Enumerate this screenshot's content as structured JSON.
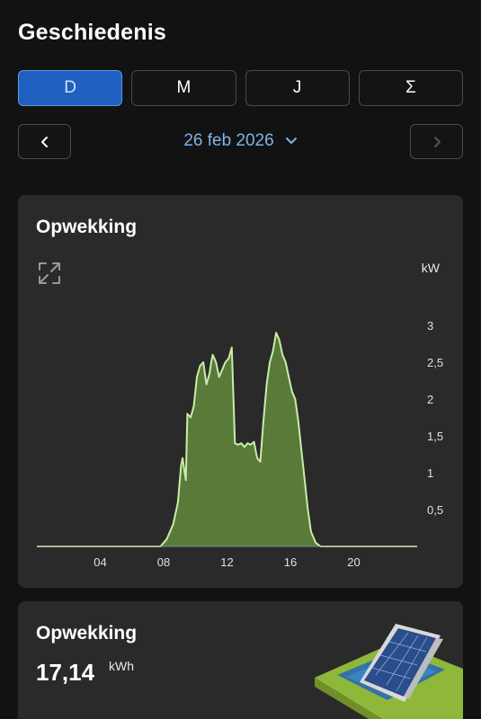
{
  "header": {
    "title": "Geschiedenis"
  },
  "tabs": [
    {
      "label": "D",
      "active": true
    },
    {
      "label": "M",
      "active": false
    },
    {
      "label": "J",
      "active": false
    },
    {
      "label": "Σ",
      "active": false
    }
  ],
  "date_nav": {
    "date": "26 feb 2026",
    "prev_icon": "chevron-left-icon",
    "next_icon": "chevron-right-icon",
    "dropdown_icon": "chevron-down-icon"
  },
  "production_chart": {
    "title": "Opwekking",
    "unit": "kW",
    "expand_icon": "expand-icon"
  },
  "chart_data": {
    "type": "area",
    "title": "Opwekking",
    "xlabel": "",
    "ylabel": "kW",
    "x_ticks": [
      "04",
      "08",
      "12",
      "16",
      "20"
    ],
    "y_ticks": [
      "0,5",
      "1",
      "1,5",
      "2",
      "2,5",
      "3"
    ],
    "xlim": [
      0,
      24
    ],
    "ylim": [
      0,
      3
    ],
    "color": "#5a7a3a",
    "line_color": "#c9ecab",
    "series": [
      {
        "x": [
          0,
          7.8,
          8.2,
          8.6,
          8.9,
          9.1,
          9.2,
          9.4,
          9.5,
          9.7,
          9.9,
          10.1,
          10.3,
          10.5,
          10.7,
          10.9,
          11.0,
          11.1,
          11.3,
          11.5,
          11.7,
          11.9,
          12.1,
          12.3,
          12.5,
          12.7,
          12.9,
          13.1,
          13.3,
          13.5,
          13.7,
          13.9,
          14.1,
          14.3,
          14.5,
          14.7,
          14.9,
          15.1,
          15.3,
          15.5,
          15.7,
          15.9,
          16.1,
          16.3,
          16.5,
          16.7,
          16.9,
          17.1,
          17.3,
          17.6,
          17.9,
          18.3,
          24
        ],
        "y": [
          0,
          0,
          0.1,
          0.3,
          0.6,
          1.1,
          1.2,
          0.9,
          1.8,
          1.75,
          1.9,
          2.3,
          2.45,
          2.5,
          2.2,
          2.35,
          2.5,
          2.6,
          2.5,
          2.3,
          2.4,
          2.5,
          2.55,
          2.7,
          1.4,
          1.38,
          1.4,
          1.35,
          1.4,
          1.38,
          1.42,
          1.2,
          1.15,
          1.7,
          2.2,
          2.5,
          2.65,
          2.9,
          2.8,
          2.6,
          2.5,
          2.3,
          2.1,
          2.0,
          1.7,
          1.3,
          0.9,
          0.5,
          0.2,
          0.05,
          0,
          0,
          0
        ]
      }
    ]
  },
  "production_total": {
    "title": "Opwekking",
    "value": "17,14",
    "unit": "kWh",
    "image_icon": "solar-panel-illustration"
  }
}
